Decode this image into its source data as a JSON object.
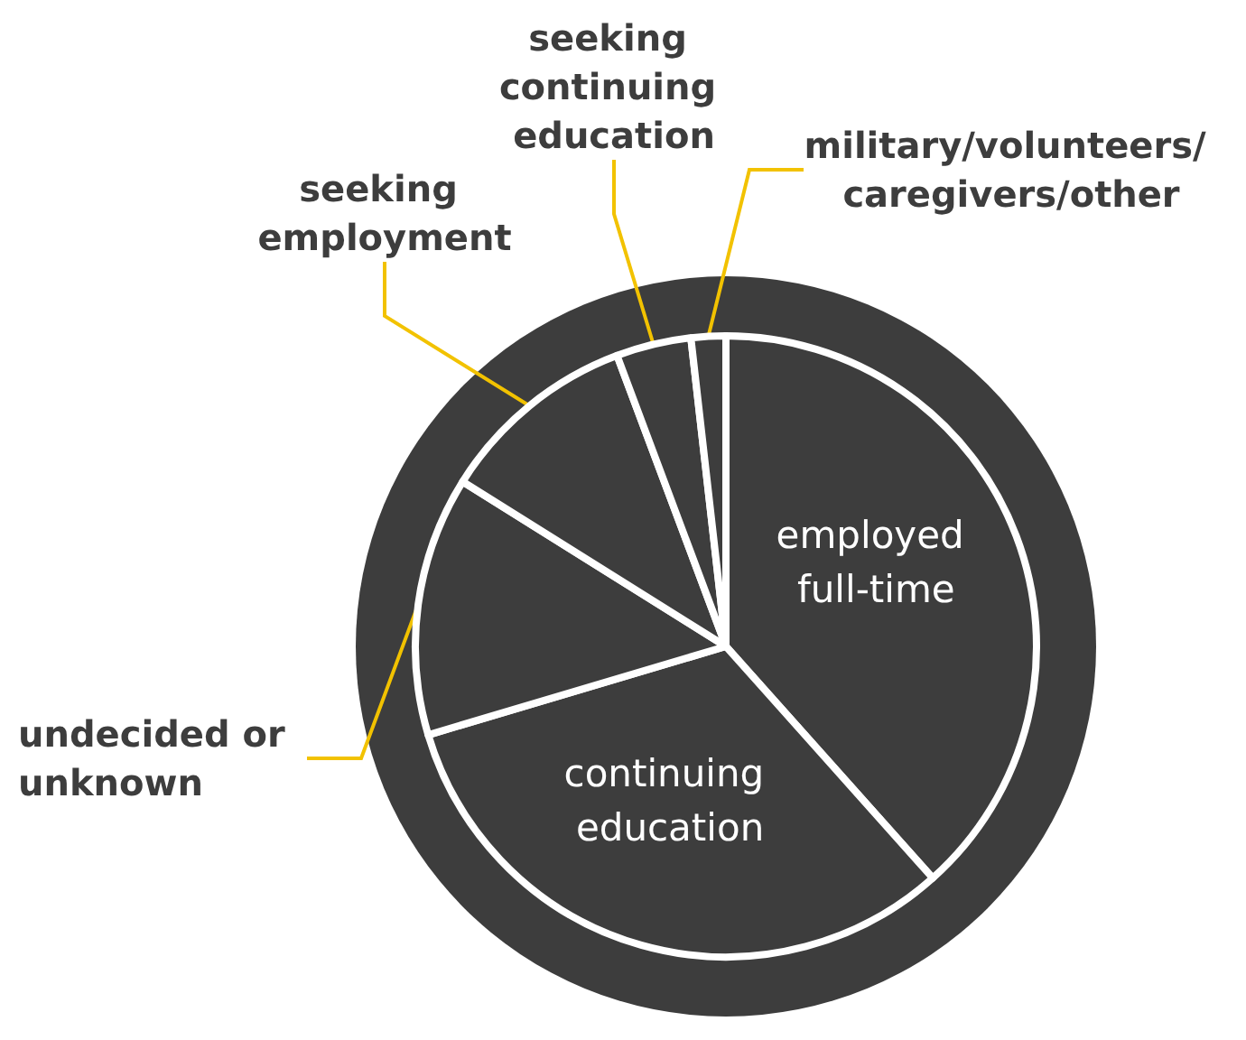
{
  "chart_data": {
    "type": "pie",
    "categories": [
      "employed full-time",
      "continuing education",
      "undecided or unknown",
      "seeking employment",
      "seeking continuing education",
      "military/volunteers/ caregivers/other"
    ],
    "values": [
      38.4,
      32.0,
      13.5,
      10.4,
      3.9,
      1.8
    ],
    "colors": [
      "#3d3d3d",
      "#3d3d3d",
      "#3d3d3d",
      "#3d3d3d",
      "#3d3d3d",
      "#3d3d3d"
    ],
    "legend": false
  }
}
